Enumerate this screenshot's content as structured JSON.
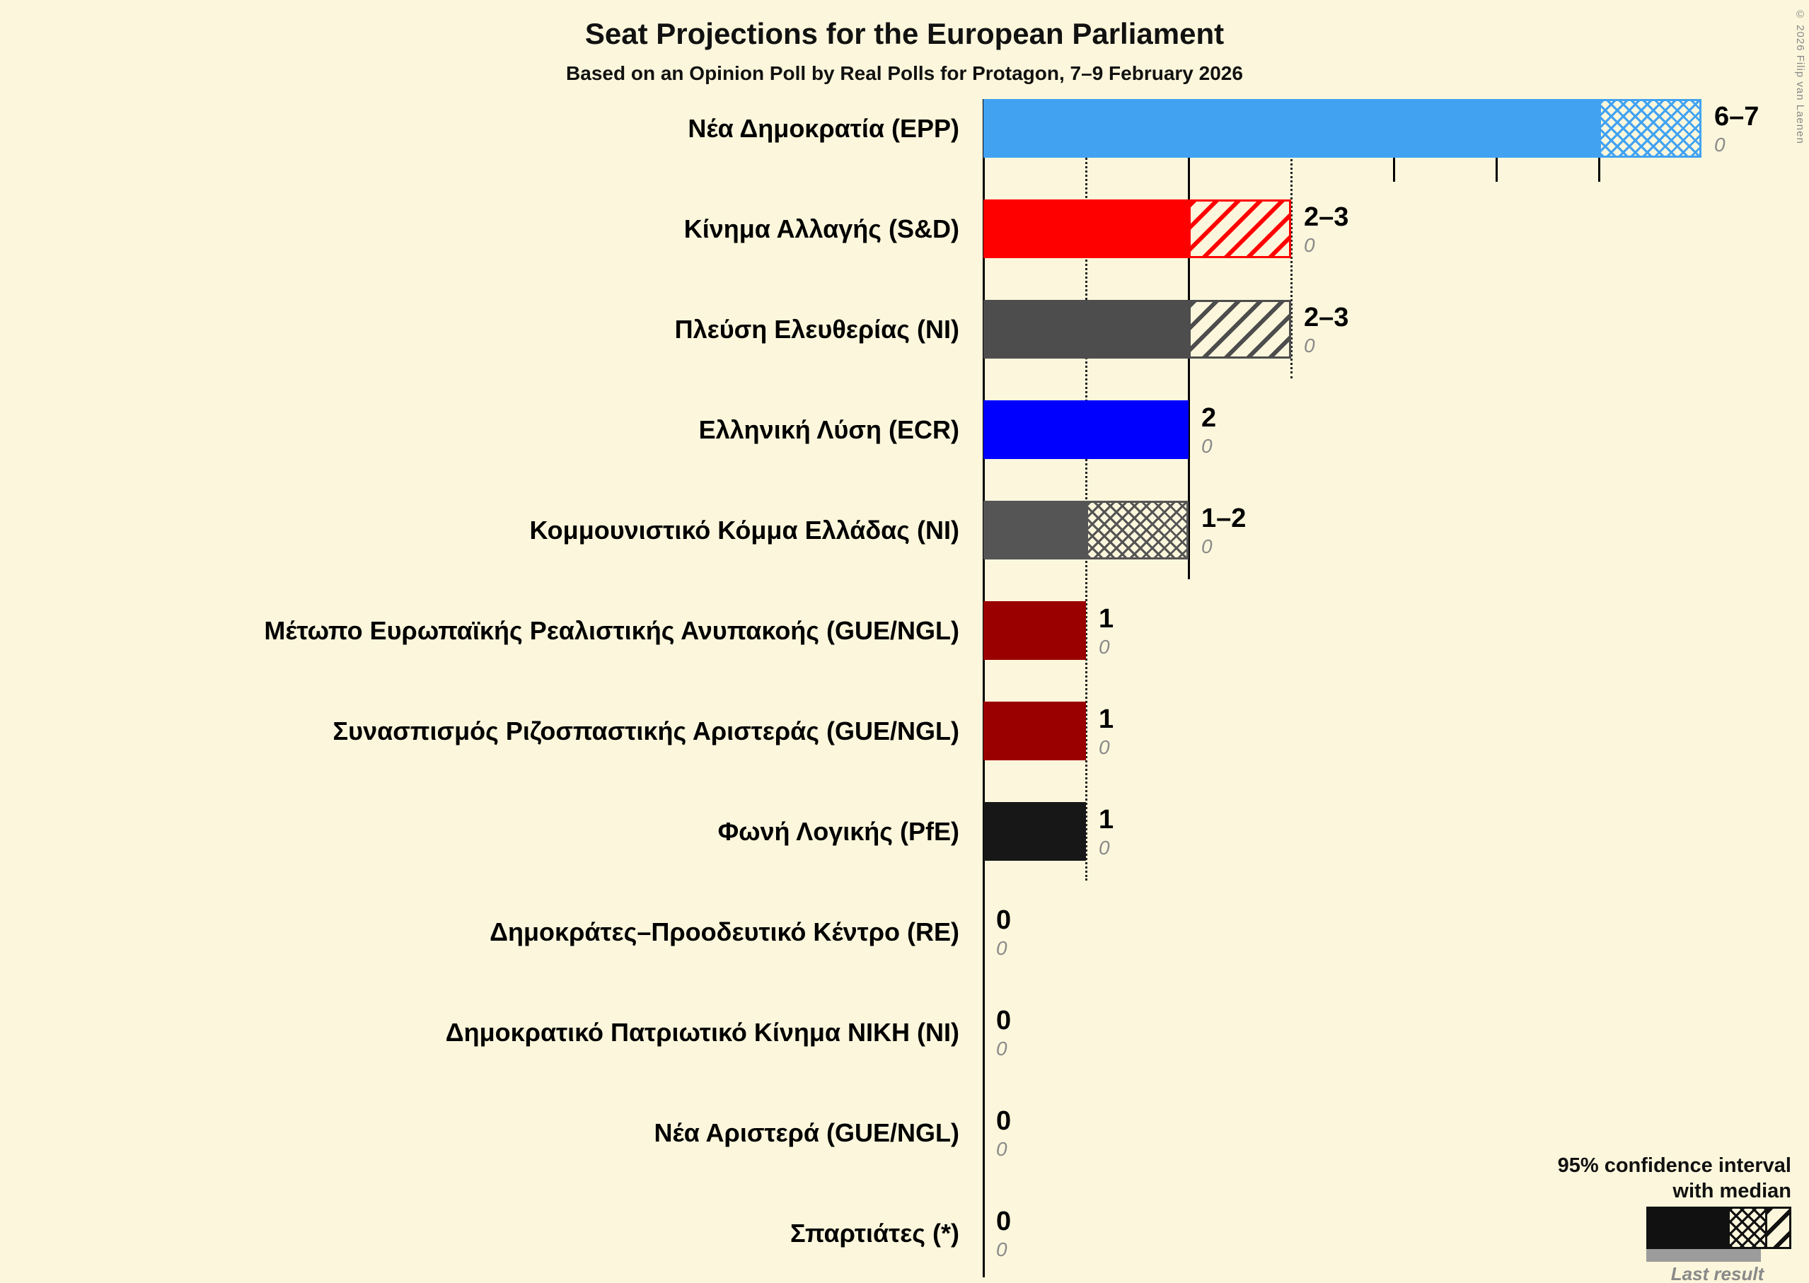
{
  "page": {
    "title": "Seat Projections for the European Parliament",
    "subtitle": "Based on an Opinion Poll by Real Polls for Protagon, 7–9 February 2026",
    "copyright": "© 2026 Filip van Laenen",
    "background_color": "#FCF7DC"
  },
  "legend": {
    "ci_line1": "95% confidence interval",
    "ci_line2": "with median",
    "last_result": "Last result"
  },
  "chart_data": {
    "type": "bar",
    "orientation": "horizontal",
    "unit": "seats",
    "title": "Seat Projections for the European Parliament",
    "axis": {
      "min": 0,
      "max": 7,
      "dotted_gridlines": [
        1,
        3
      ],
      "solid_gridlines": [
        2
      ],
      "tick_marks": [
        4,
        5,
        6
      ]
    },
    "rows": [
      {
        "party": "Νέα Δημοκρατία (EPP)",
        "ci_low": 6,
        "ci_high": 7,
        "value_label": "6–7",
        "last_result": "0",
        "color": "#41A2F2",
        "ci_pattern": "crosshatch"
      },
      {
        "party": "Κίνημα Αλλαγής (S&D)",
        "ci_low": 2,
        "ci_high": 3,
        "value_label": "2–3",
        "last_result": "0",
        "color": "#FF0000",
        "ci_pattern": "diagonal"
      },
      {
        "party": "Πλεύση Ελευθερίας (NI)",
        "ci_low": 2,
        "ci_high": 3,
        "value_label": "2–3",
        "last_result": "0",
        "color": "#4D4D4D",
        "ci_pattern": "diagonal"
      },
      {
        "party": "Ελληνική Λύση (ECR)",
        "ci_low": 2,
        "ci_high": 2,
        "value_label": "2",
        "last_result": "0",
        "color": "#0000FF",
        "ci_pattern": null
      },
      {
        "party": "Κομμουνιστικό Κόμμα Ελλάδας (NI)",
        "ci_low": 1,
        "ci_high": 2,
        "value_label": "1–2",
        "last_result": "0",
        "color": "#555555",
        "ci_pattern": "crosshatch"
      },
      {
        "party": "Μέτωπο Ευρωπαϊκής Ρεαλιστικής Ανυπακοής (GUE/NGL)",
        "ci_low": 1,
        "ci_high": 1,
        "value_label": "1",
        "last_result": "0",
        "color": "#9B0000",
        "ci_pattern": null
      },
      {
        "party": "Συνασπισμός Ριζοσπαστικής Αριστεράς (GUE/NGL)",
        "ci_low": 1,
        "ci_high": 1,
        "value_label": "1",
        "last_result": "0",
        "color": "#9B0000",
        "ci_pattern": null
      },
      {
        "party": "Φωνή Λογικής (PfE)",
        "ci_low": 1,
        "ci_high": 1,
        "value_label": "1",
        "last_result": "0",
        "color": "#171717",
        "ci_pattern": null
      },
      {
        "party": "Δημοκράτες–Προοδευτικό Κέντρο (RE)",
        "ci_low": 0,
        "ci_high": 0,
        "value_label": "0",
        "last_result": "0",
        "color": "#888888",
        "ci_pattern": null
      },
      {
        "party": "Δημοκρατικό Πατριωτικό Κίνημα ΝΙΚΗ (NI)",
        "ci_low": 0,
        "ci_high": 0,
        "value_label": "0",
        "last_result": "0",
        "color": "#888888",
        "ci_pattern": null
      },
      {
        "party": "Νέα Αριστερά (GUE/NGL)",
        "ci_low": 0,
        "ci_high": 0,
        "value_label": "0",
        "last_result": "0",
        "color": "#888888",
        "ci_pattern": null
      },
      {
        "party": "Σπαρτιάτες (*)",
        "ci_low": 0,
        "ci_high": 0,
        "value_label": "0",
        "last_result": "0",
        "color": "#888888",
        "ci_pattern": null
      }
    ]
  }
}
